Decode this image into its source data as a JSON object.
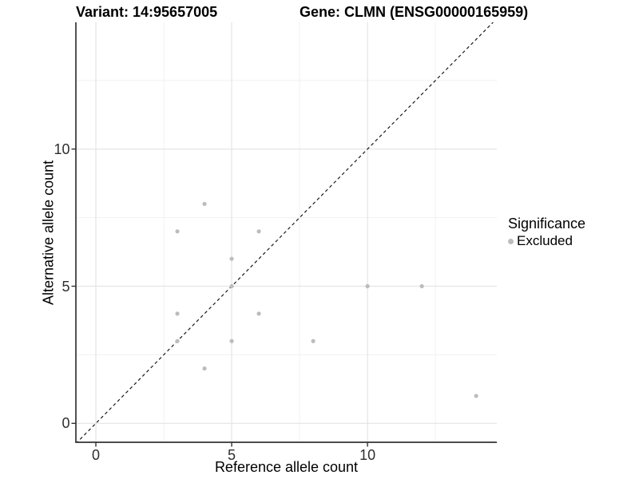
{
  "header": {
    "variant_title": "Variant: 14:95657005",
    "gene_title": "Gene: CLMN (ENSG00000165959)"
  },
  "legend": {
    "title": "Significance",
    "items": [
      {
        "label": "Excluded",
        "color": "#bcbcbc"
      }
    ]
  },
  "chart_data": {
    "type": "scatter",
    "title": "Variant: 14:95657005 / Gene: CLMN (ENSG00000165959)",
    "xlabel": "Reference allele count",
    "ylabel": "Alternative allele count",
    "xlim": [
      -0.735,
      14.76
    ],
    "ylim": [
      -0.69,
      14.62
    ],
    "x_ticks": [
      0,
      5,
      10
    ],
    "y_ticks": [
      0,
      5,
      10
    ],
    "x_minor_ticks": [
      2.5,
      7.5,
      12.5
    ],
    "y_minor_ticks": [
      2.5,
      7.5,
      12.5
    ],
    "grid": "major-and-minor",
    "legend_position": "right",
    "ref_line": {
      "type": "abline",
      "slope": 1,
      "intercept": 0,
      "style": "dashed",
      "color": "#1a1a1a"
    },
    "series": [
      {
        "name": "Excluded",
        "color": "#bcbcbc",
        "points": [
          [
            3,
            3
          ],
          [
            3,
            4
          ],
          [
            3,
            7
          ],
          [
            4,
            2
          ],
          [
            4,
            8
          ],
          [
            5,
            3
          ],
          [
            5,
            5
          ],
          [
            5,
            6
          ],
          [
            6,
            4
          ],
          [
            6,
            7
          ],
          [
            8,
            3
          ],
          [
            10,
            5
          ],
          [
            12,
            5
          ],
          [
            14,
            1
          ]
        ]
      }
    ],
    "style": {
      "major_grid_color": "#e4e4e4",
      "minor_grid_color": "#f1f1f1",
      "axis_line_color": "#333333",
      "tick_color": "#333333",
      "point_radius": 2.6
    }
  }
}
